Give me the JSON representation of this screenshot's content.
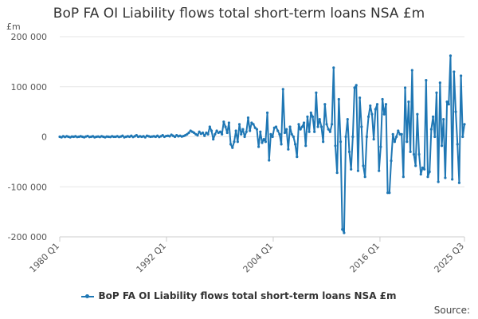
{
  "title": "BoP FA OI Liability flows total short-term loans NSA £m",
  "unit_label": "£m",
  "source_label": "Source:",
  "colors": {
    "series": "#1f77b4",
    "axis": "#cccccc",
    "grid": "#e6e6e6"
  },
  "chart_data": {
    "type": "line",
    "title": "BoP FA OI Liability flows total short-term loans NSA £m",
    "ylabel": "£m",
    "xlabel": "",
    "ylim": [
      -200000,
      200000
    ],
    "y_ticks": [
      200000,
      100000,
      0,
      -100000,
      -200000
    ],
    "y_tick_labels": [
      "200 000",
      "100 000",
      "0",
      "-100 000",
      "-200 000"
    ],
    "x_ticks": [
      "1980 Q1",
      "1992 Q1",
      "2004 Q1",
      "2016 Q1",
      "2025 Q3"
    ],
    "grid": "horizontal",
    "legend": "bottom",
    "x_start": "1980 Q1",
    "x_end": "2025 Q3",
    "series": [
      {
        "name": "BoP FA OI Liability flows total short-term loans NSA £m",
        "color": "#1f77b4",
        "values": [
          0,
          -1000,
          1000,
          -500,
          1000,
          0,
          -1000,
          500,
          0,
          1000,
          -500,
          0,
          1000,
          0,
          -1000,
          500,
          1500,
          -500,
          0,
          1000,
          -1000,
          0,
          500,
          -500,
          1000,
          0,
          -1000,
          500,
          0,
          -500,
          1000,
          0,
          0,
          1000,
          -500,
          500,
          2000,
          -1000,
          0,
          1000,
          0,
          2000,
          -500,
          1000,
          3000,
          0,
          1000,
          0,
          1000,
          -1000,
          2000,
          1000,
          0,
          500,
          1000,
          0,
          2000,
          -500,
          1000,
          3000,
          0,
          1500,
          2000,
          1000,
          4000,
          2000,
          0,
          3000,
          1000,
          2000,
          500,
          1500,
          3000,
          5000,
          8000,
          12000,
          10000,
          8000,
          5000,
          3000,
          10000,
          6000,
          8000,
          2000,
          8000,
          5000,
          20000,
          12000,
          -5000,
          5000,
          12000,
          8000,
          10000,
          5000,
          30000,
          20000,
          8000,
          28000,
          -15000,
          -22000,
          -10000,
          12000,
          -10000,
          25000,
          5000,
          15000,
          0,
          10000,
          38000,
          12000,
          28000,
          25000,
          18000,
          15000,
          -20000,
          10000,
          -12000,
          -5000,
          -10000,
          48000,
          -47000,
          5000,
          0,
          18000,
          20000,
          12000,
          5000,
          -15000,
          95000,
          8000,
          15000,
          -25000,
          20000,
          5000,
          0,
          -15000,
          -40000,
          25000,
          15000,
          20000,
          28000,
          -18000,
          40000,
          10000,
          48000,
          40000,
          10000,
          88000,
          20000,
          35000,
          20000,
          -10000,
          65000,
          25000,
          15000,
          10000,
          25000,
          138000,
          -18000,
          -72000,
          75000,
          -10000,
          -185000,
          -192000,
          0,
          35000,
          -30000,
          -65000,
          0,
          98000,
          103000,
          -68000,
          78000,
          20000,
          -58000,
          -80000,
          0,
          40000,
          62000,
          45000,
          -5000,
          55000,
          65000,
          -68000,
          -20000,
          75000,
          45000,
          65000,
          -112000,
          -112000,
          -48000,
          5000,
          -10000,
          0,
          12000,
          5000,
          5000,
          -80000,
          98000,
          -10000,
          70000,
          -30000,
          133000,
          -35000,
          -58000,
          45000,
          -35000,
          -75000,
          -62000,
          -65000,
          113000,
          -80000,
          -70000,
          15000,
          40000,
          0,
          88000,
          -90000,
          108000,
          -18000,
          35000,
          -82000,
          70000,
          65000,
          162000,
          -85000,
          130000,
          50000,
          -15000,
          -92000,
          122000,
          0,
          25000
        ]
      }
    ]
  }
}
